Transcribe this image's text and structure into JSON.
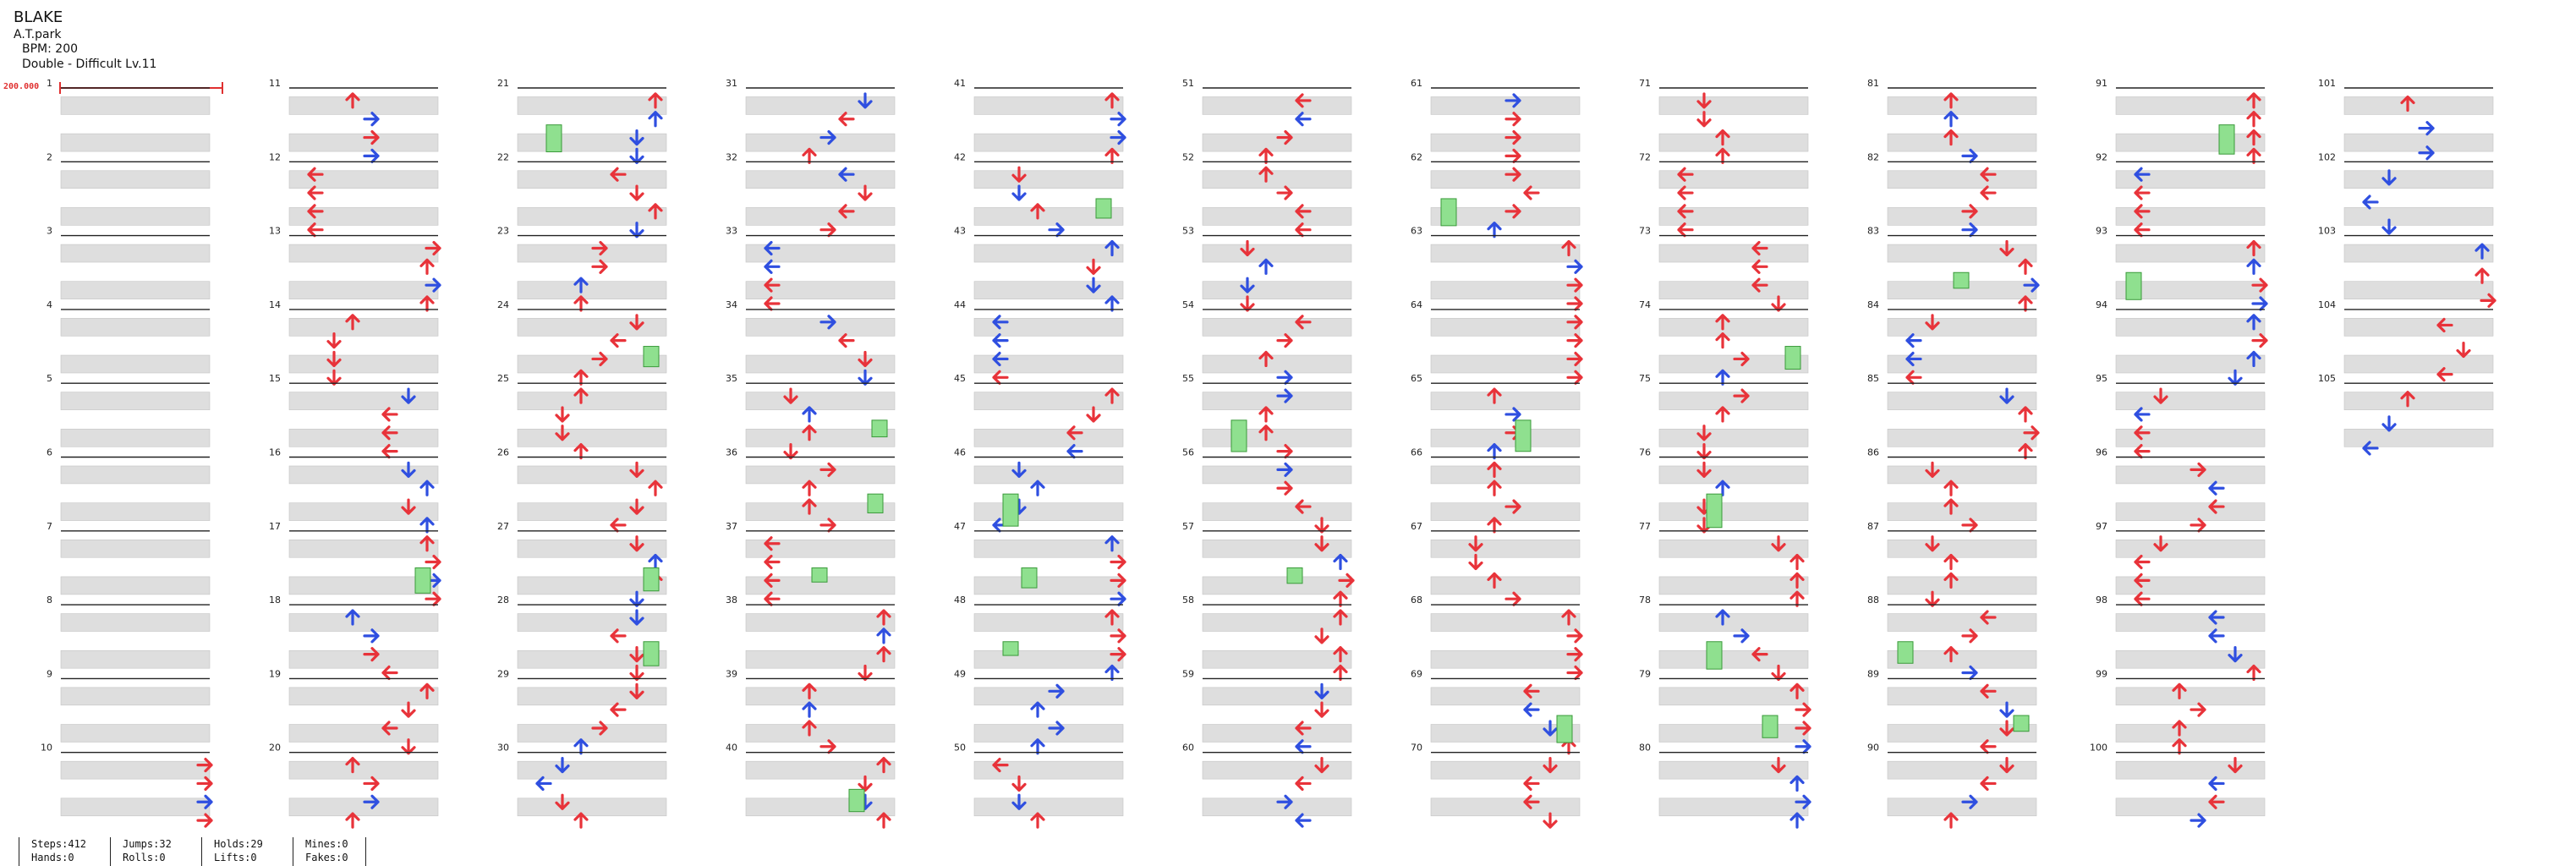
{
  "song": {
    "title": "BLAKE",
    "artist": "A.T.park",
    "bpm": "BPM: 200",
    "difficulty": "Double - Difficult  Lv.11"
  },
  "bpm_marker": "200.000",
  "colors": {
    "red": "#e8333a",
    "blue": "#2f4fe0",
    "hold": "#8fe08f",
    "hold_border": "#3a9a3a",
    "stripe": "#dedede",
    "line": "#222222"
  },
  "measures": {
    "first": 1,
    "last": 105,
    "labels_every": 1
  },
  "stats": {
    "steps": "Steps:412",
    "hands": "Hands:0",
    "jumps": "Jumps:32",
    "rolls": "Rolls:0",
    "holds": "Holds:29",
    "lifts": "Lifts:0",
    "mines": "Mines:0",
    "fakes": "Fakes:0"
  }
}
